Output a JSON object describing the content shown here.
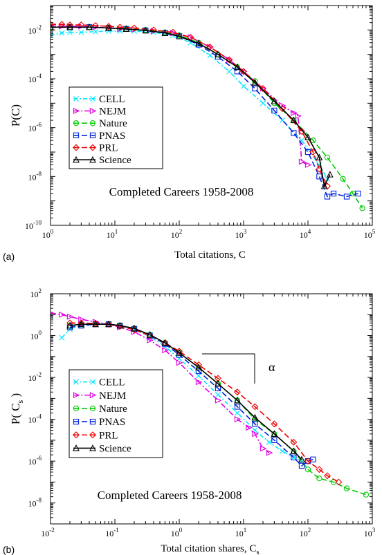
{
  "chart_data": [
    {
      "type": "line",
      "panel_label": "(a)",
      "xlabel": "Total citations, C",
      "ylabel": "P(C)",
      "annotation": "Completed Careers 1958-2008",
      "x_scale": "log",
      "y_scale": "log",
      "xlim": [
        1,
        100000
      ],
      "ylim": [
        1e-10,
        0.1
      ],
      "x_ticks": [
        1,
        10,
        100,
        1000,
        10000,
        100000
      ],
      "x_tick_labels": [
        {
          "base": "10",
          "exp": "0"
        },
        {
          "base": "10",
          "exp": "1"
        },
        {
          "base": "10",
          "exp": "2"
        },
        {
          "base": "10",
          "exp": "3"
        },
        {
          "base": "10",
          "exp": "4"
        },
        {
          "base": "10",
          "exp": "5"
        }
      ],
      "y_ticks": [
        1e-10,
        1e-08,
        1e-06,
        0.0001,
        0.01
      ],
      "y_tick_labels": [
        {
          "base": "10",
          "exp": "-10"
        },
        {
          "base": "10",
          "exp": "-8"
        },
        {
          "base": "10",
          "exp": "-6"
        },
        {
          "base": "10",
          "exp": "-4"
        },
        {
          "base": "10",
          "exp": "-2"
        }
      ],
      "grid": false,
      "legend_position": "middle-left",
      "series": [
        {
          "name": "CELL",
          "color": "#00e5ff",
          "marker": "x",
          "dash": "6,3,2,3",
          "x": [
            1,
            1.5,
            2,
            3,
            5,
            8,
            12,
            20,
            40,
            80,
            150,
            300,
            600,
            1000,
            2000,
            4000,
            8000,
            15000,
            20000
          ],
          "y": [
            0.006,
            0.0075,
            0.008,
            0.008,
            0.0085,
            0.009,
            0.009,
            0.009,
            0.008,
            0.006,
            0.003,
            0.0009,
            0.0002,
            5e-05,
            1e-05,
            2e-06,
            3e-07,
            3e-08,
            8e-09
          ]
        },
        {
          "name": "NEJM",
          "color": "#e000e0",
          "marker": "tri-right",
          "dash": "8,3,2,3",
          "x": [
            1,
            1.5,
            2,
            3,
            5,
            8,
            12,
            20,
            40,
            80,
            150,
            300,
            600,
            1000,
            2000,
            4000,
            6000,
            7000,
            8000,
            10000
          ],
          "y": [
            0.015,
            0.014,
            0.014,
            0.014,
            0.013,
            0.012,
            0.011,
            0.0105,
            0.009,
            0.0075,
            0.005,
            0.002,
            0.0006,
            0.0002,
            4e-05,
            8e-06,
            4e-06,
            3e-06,
            4e-08,
            3e-08
          ]
        },
        {
          "name": "Nature",
          "color": "#00cc00",
          "marker": "circle",
          "dash": "8,4",
          "x": [
            1,
            2,
            4,
            8,
            15,
            30,
            60,
            100,
            200,
            400,
            800,
            1500,
            3000,
            6000,
            12000,
            20000,
            35000,
            50000,
            70000
          ],
          "y": [
            0.013,
            0.013,
            0.013,
            0.012,
            0.011,
            0.01,
            0.008,
            0.006,
            0.003,
            0.001,
            0.0003,
            8e-05,
            1e-05,
            2e-06,
            3e-07,
            6e-08,
            8e-09,
            2e-09,
            5e-10
          ]
        },
        {
          "name": "PNAS",
          "color": "#0022dd",
          "marker": "square",
          "dash": "8,4",
          "x": [
            1,
            2,
            4,
            8,
            15,
            30,
            60,
            100,
            200,
            400,
            800,
            1500,
            3000,
            6000,
            10000,
            15000,
            20000,
            25000,
            40000,
            60000
          ],
          "y": [
            0.013,
            0.013,
            0.013,
            0.012,
            0.011,
            0.0095,
            0.0075,
            0.0055,
            0.0025,
            0.0008,
            0.0002,
            4e-05,
            5e-06,
            6e-07,
            1e-07,
            1e-08,
            1.5e-09,
            2e-09,
            1.5e-09,
            2e-09
          ]
        },
        {
          "name": "PRL",
          "color": "#ee0000",
          "marker": "diamond",
          "dash": "8,4",
          "x": [
            1,
            1.5,
            2,
            3,
            5,
            8,
            12,
            20,
            40,
            80,
            150,
            300,
            600,
            1000,
            2000,
            4000,
            8000,
            12000,
            15000,
            20000
          ],
          "y": [
            0.017,
            0.017,
            0.016,
            0.016,
            0.015,
            0.014,
            0.013,
            0.012,
            0.01,
            0.008,
            0.005,
            0.002,
            0.0006,
            0.0002,
            4e-05,
            6e-06,
            7e-07,
            1e-07,
            2e-08,
            4e-09
          ]
        },
        {
          "name": "Science",
          "color": "#000000",
          "marker": "triangle",
          "dash": "",
          "x": [
            1,
            2,
            4,
            8,
            15,
            30,
            60,
            100,
            200,
            400,
            800,
            1500,
            3000,
            6000,
            10000,
            15000,
            18000,
            22000
          ],
          "y": [
            0.013,
            0.013,
            0.013,
            0.012,
            0.011,
            0.0095,
            0.0075,
            0.0055,
            0.0028,
            0.001,
            0.0003,
            7e-05,
            1.2e-05,
            2e-06,
            4e-07,
            6e-08,
            4e-09,
            1.2e-08
          ]
        }
      ]
    },
    {
      "type": "line",
      "panel_label": "(b)",
      "xlabel": "Total citation shares, C",
      "xlabel_subscript": "s",
      "ylabel": "P( C",
      "ylabel_subscript": "s",
      "ylabel_suffix": " )",
      "annotation": "Completed Careers 1958-2008",
      "slope_label": "α",
      "x_scale": "log",
      "y_scale": "log",
      "xlim": [
        0.01,
        1000
      ],
      "ylim": [
        1e-09,
        100
      ],
      "x_ticks": [
        0.01,
        0.1,
        1,
        10,
        100,
        1000
      ],
      "x_tick_labels": [
        {
          "base": "10",
          "exp": "-2"
        },
        {
          "base": "10",
          "exp": "-1"
        },
        {
          "base": "10",
          "exp": "0"
        },
        {
          "base": "10",
          "exp": "1"
        },
        {
          "base": "10",
          "exp": "2"
        },
        {
          "base": "10",
          "exp": "3"
        }
      ],
      "y_ticks": [
        1e-08,
        1e-06,
        0.0001,
        0.01,
        1,
        100
      ],
      "y_tick_labels": [
        {
          "base": "10",
          "exp": "-8"
        },
        {
          "base": "10",
          "exp": "-6"
        },
        {
          "base": "10",
          "exp": "-4"
        },
        {
          "base": "10",
          "exp": "-2"
        },
        {
          "base": "10",
          "exp": "0"
        },
        {
          "base": "10",
          "exp": "2"
        }
      ],
      "grid": false,
      "legend_position": "middle-left",
      "series": [
        {
          "name": "CELL",
          "color": "#00e5ff",
          "marker": "x",
          "dash": "6,3,2,3",
          "x": [
            0.015,
            0.02,
            0.03,
            0.05,
            0.08,
            0.12,
            0.2,
            0.35,
            0.6,
            1,
            2,
            4,
            8,
            15,
            25,
            40,
            60,
            80
          ],
          "y": [
            0.8,
            2,
            3,
            3.5,
            3.5,
            3,
            2,
            0.9,
            0.3,
            0.08,
            0.012,
            0.0015,
            0.0002,
            3e-05,
            8e-06,
            3e-06,
            1.5e-06,
            1e-06
          ]
        },
        {
          "name": "NEJM",
          "color": "#e000e0",
          "marker": "tri-right",
          "dash": "8,3,2,3",
          "x": [
            0.01,
            0.015,
            0.02,
            0.03,
            0.05,
            0.08,
            0.12,
            0.2,
            0.35,
            0.6,
            1,
            2,
            4,
            8,
            12,
            15,
            20,
            25
          ],
          "y": [
            12,
            10,
            8,
            6,
            4.5,
            3.5,
            2.5,
            1.5,
            0.6,
            0.2,
            0.05,
            0.006,
            0.0008,
            0.0001,
            4e-05,
            2e-05,
            4e-06,
            2.5e-06
          ]
        },
        {
          "name": "Nature",
          "color": "#00cc00",
          "marker": "circle",
          "dash": "8,4",
          "x": [
            0.02,
            0.03,
            0.05,
            0.08,
            0.12,
            0.2,
            0.35,
            0.6,
            1,
            2,
            4,
            8,
            15,
            30,
            60,
            100,
            150,
            250,
            400,
            800
          ],
          "y": [
            3,
            3.5,
            3.5,
            3.5,
            3,
            2.2,
            1.1,
            0.45,
            0.15,
            0.03,
            0.005,
            0.0008,
            0.0001,
            2e-05,
            3e-06,
            4e-07,
            1.5e-07,
            1e-07,
            5e-08,
            2.5e-08
          ]
        },
        {
          "name": "PNAS",
          "color": "#0022dd",
          "marker": "square",
          "dash": "8,4",
          "x": [
            0.02,
            0.03,
            0.05,
            0.08,
            0.12,
            0.2,
            0.35,
            0.6,
            1,
            2,
            4,
            8,
            15,
            30,
            60,
            80,
            100,
            120
          ],
          "y": [
            2.5,
            3,
            3.5,
            3.5,
            3,
            2.1,
            1,
            0.4,
            0.12,
            0.02,
            0.003,
            0.0004,
            6e-05,
            1e-05,
            1.5e-06,
            6e-07,
            1e-06,
            1.2e-06
          ]
        },
        {
          "name": "PRL",
          "color": "#ee0000",
          "marker": "diamond",
          "dash": "8,4",
          "x": [
            0.02,
            0.03,
            0.05,
            0.08,
            0.12,
            0.2,
            0.35,
            0.6,
            1,
            2,
            4,
            8,
            15,
            30,
            60,
            100,
            150,
            200,
            300
          ],
          "y": [
            4,
            4,
            3.8,
            3.5,
            2.8,
            1.9,
            1,
            0.45,
            0.18,
            0.04,
            0.009,
            0.002,
            0.0004,
            6e-05,
            8e-06,
            1e-06,
            4e-07,
            2e-07,
            1e-07
          ]
        },
        {
          "name": "Science",
          "color": "#000000",
          "marker": "triangle",
          "dash": "",
          "x": [
            0.02,
            0.03,
            0.05,
            0.08,
            0.12,
            0.2,
            0.35,
            0.6,
            1,
            2,
            4,
            8,
            15,
            30,
            60,
            80
          ],
          "y": [
            3,
            3.5,
            3.5,
            3.5,
            3,
            2.2,
            1.1,
            0.45,
            0.15,
            0.03,
            0.005,
            0.0008,
            0.00012,
            2e-05,
            3e-06,
            1.2e-06
          ]
        }
      ]
    }
  ]
}
